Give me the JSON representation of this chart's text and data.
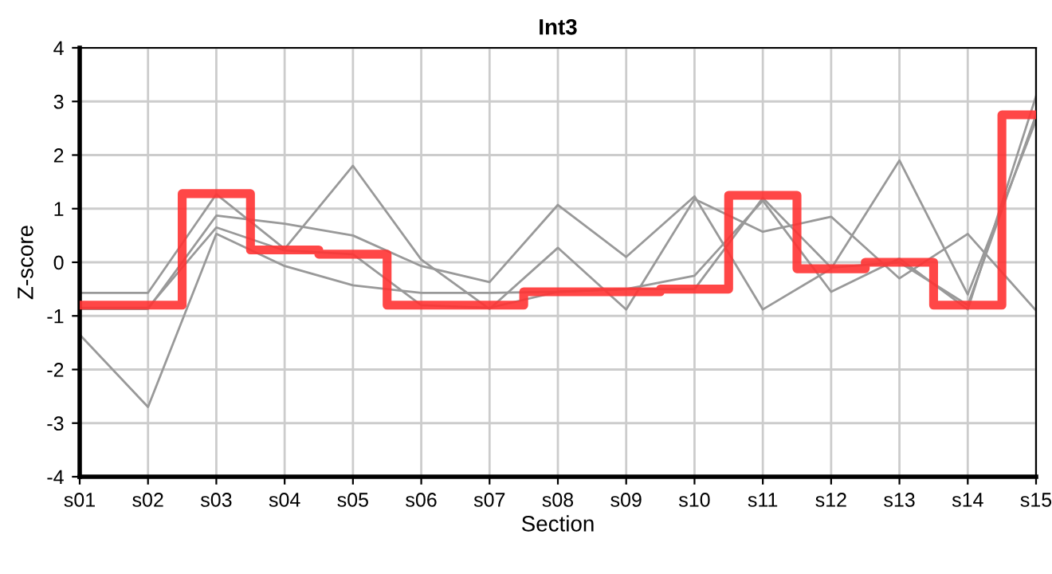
{
  "chart_data": {
    "type": "line",
    "title": "Int3",
    "xlabel": "Section",
    "ylabel": "Z-score",
    "categories": [
      "s01",
      "s02",
      "s03",
      "s04",
      "s05",
      "s06",
      "s07",
      "s08",
      "s09",
      "s10",
      "s11",
      "s12",
      "s13",
      "s14",
      "s15"
    ],
    "ylim": [
      -4,
      4
    ],
    "yticks": [
      -4,
      -3,
      -2,
      -1,
      0,
      1,
      2,
      3,
      4
    ],
    "grid": true,
    "legend": false,
    "series": [
      {
        "color": "#999999",
        "values": [
          -1.35,
          -2.7,
          0.53,
          -0.07,
          -0.43,
          -0.57,
          -0.57,
          -0.55,
          -0.5,
          -0.25,
          1.15,
          -0.55,
          0.07,
          -0.88,
          3.1
        ]
      },
      {
        "color": "#999999",
        "values": [
          -0.57,
          -0.57,
          1.27,
          0.25,
          1.8,
          0.05,
          -0.87,
          0.27,
          -0.88,
          1.18,
          0.57,
          0.85,
          -0.3,
          0.53,
          -0.9
        ]
      },
      {
        "color": "#999999",
        "values": [
          -0.87,
          -0.87,
          0.87,
          0.72,
          0.5,
          -0.07,
          -0.37,
          1.07,
          0.1,
          1.23,
          -0.88,
          -0.12,
          1.9,
          -0.6,
          2.65
        ]
      },
      {
        "color": "#999999",
        "values": [
          -0.85,
          -0.85,
          0.65,
          0.22,
          0.15,
          -0.8,
          -0.85,
          -0.55,
          -0.5,
          -0.5,
          1.2,
          -0.1,
          0.0,
          -0.8,
          2.75
        ]
      },
      {
        "type": "step",
        "color": "#ff3333",
        "values": [
          -0.8,
          -0.8,
          1.28,
          0.23,
          0.15,
          -0.8,
          -0.8,
          -0.55,
          -0.55,
          -0.5,
          1.25,
          -0.12,
          0.0,
          -0.8,
          2.75
        ]
      }
    ]
  }
}
